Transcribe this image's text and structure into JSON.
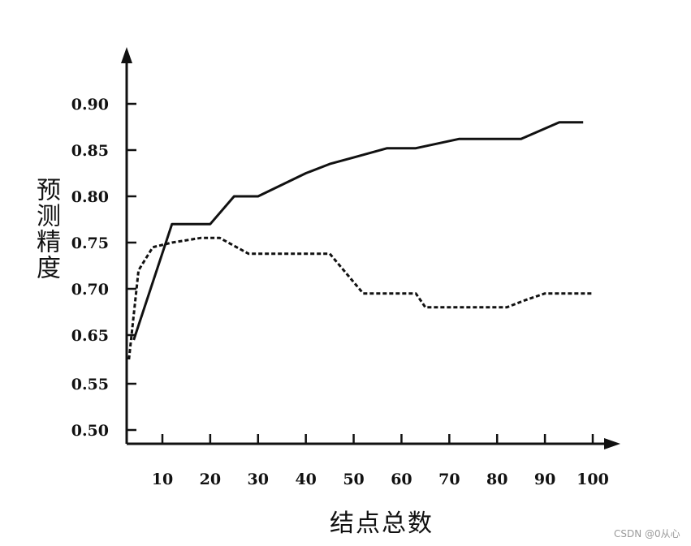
{
  "chart_data": {
    "type": "line",
    "xlabel": "结点总数",
    "ylabel": "预测精度",
    "x_ticks": [
      10,
      20,
      30,
      40,
      50,
      60,
      70,
      80,
      90,
      100
    ],
    "y_ticks": [
      "0.50",
      "0.55",
      "0.65",
      "0.70",
      "0.75",
      "0.80",
      "0.85",
      "0.90"
    ],
    "series": [
      {
        "style": "solid",
        "color": "#111111",
        "x": [
          4,
          12,
          20,
          25,
          30,
          40,
          45,
          50,
          57,
          63,
          72,
          78,
          85,
          93,
          98
        ],
        "y": [
          0.64,
          0.77,
          0.77,
          0.8,
          0.8,
          0.825,
          0.835,
          0.842,
          0.852,
          0.852,
          0.862,
          0.862,
          0.862,
          0.88,
          0.88
        ]
      },
      {
        "style": "dashed",
        "color": "#111111",
        "x": [
          3,
          5,
          8,
          12,
          18,
          22,
          28,
          35,
          40,
          45,
          52,
          58,
          63,
          65,
          75,
          82,
          86,
          90,
          95,
          100
        ],
        "y": [
          0.6,
          0.72,
          0.745,
          0.75,
          0.755,
          0.755,
          0.738,
          0.738,
          0.738,
          0.738,
          0.695,
          0.695,
          0.695,
          0.68,
          0.68,
          0.68,
          0.688,
          0.695,
          0.695,
          0.695
        ]
      }
    ]
  },
  "watermark": "CSDN @0从心"
}
